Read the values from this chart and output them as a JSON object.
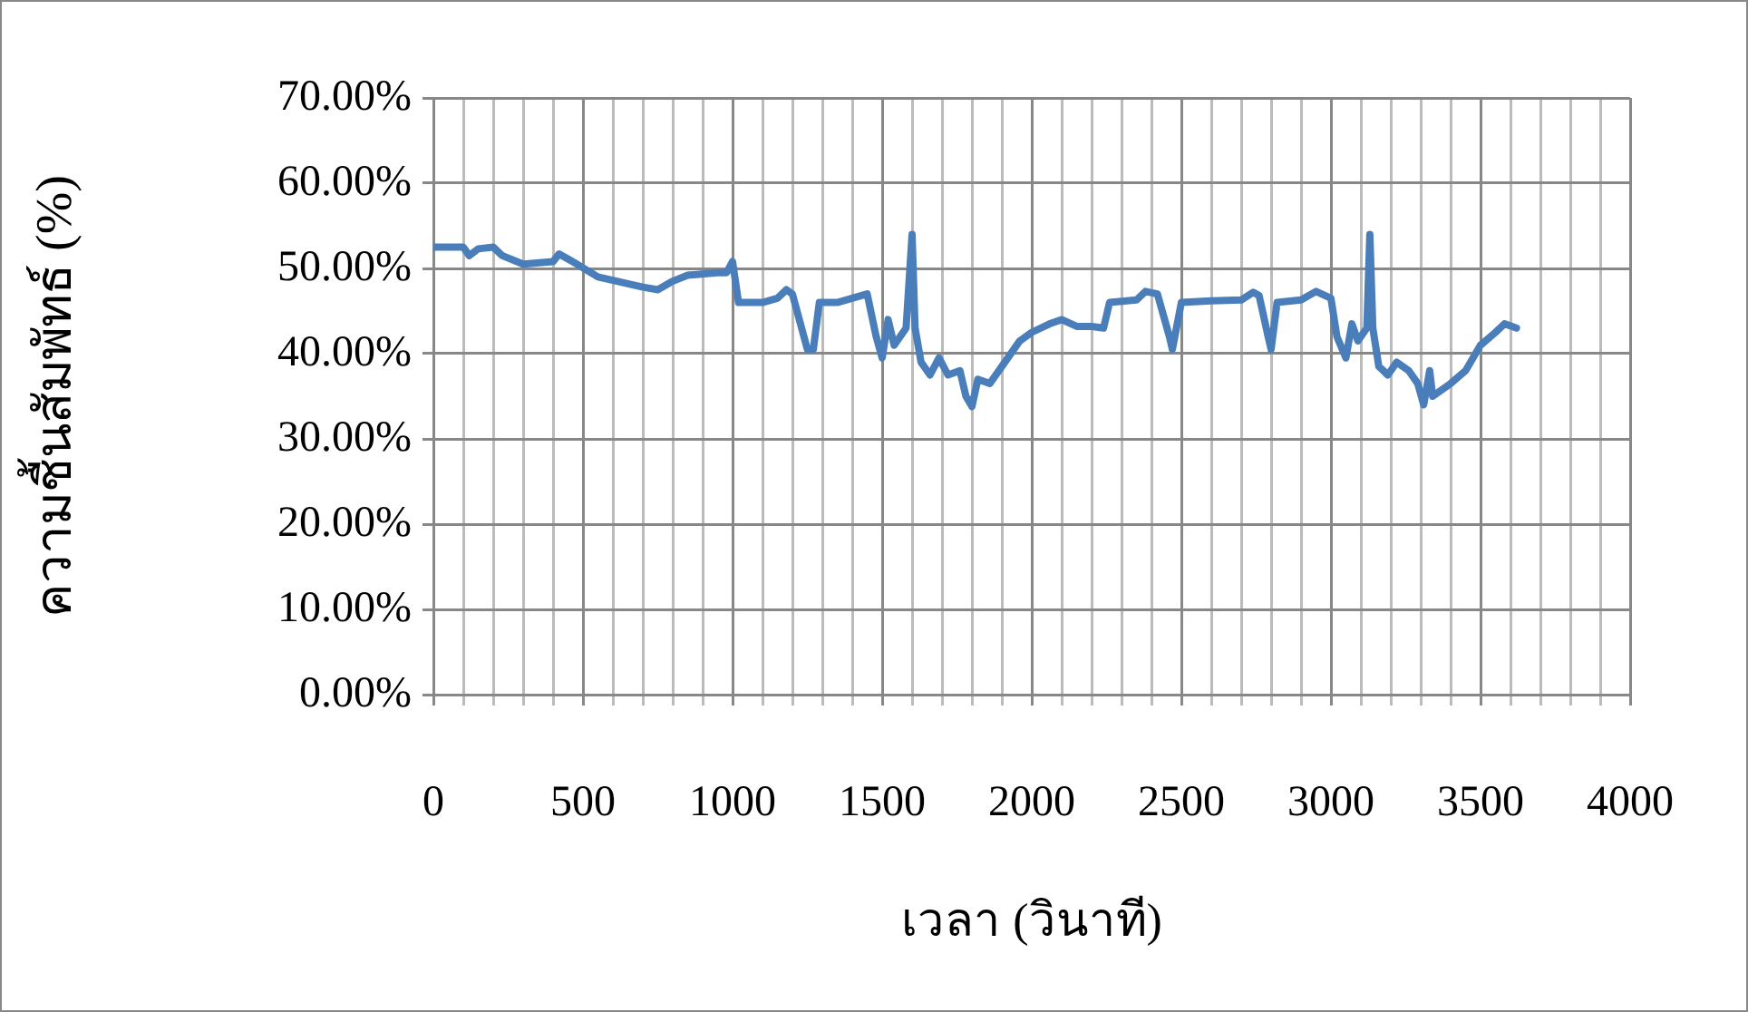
{
  "chart_data": {
    "type": "line",
    "xlabel": "เวลา (วินาที)",
    "ylabel": "ความชื้นสัมพัทธ์ (%)",
    "xlim": [
      0,
      4000
    ],
    "xticks": [
      0,
      {
        "value": 100,
        "label": null
      },
      {
        "value": 200,
        "label": null
      },
      {
        "value": 300,
        "label": null
      },
      {
        "value": 400,
        "label": null
      },
      500,
      {
        "value": 600,
        "label": null
      },
      {
        "value": 700,
        "label": null
      },
      {
        "value": 800,
        "label": null
      },
      {
        "value": 900,
        "label": null
      },
      1000,
      {
        "value": 1100,
        "label": null
      },
      {
        "value": 1200,
        "label": null
      },
      {
        "value": 1300,
        "label": null
      },
      {
        "value": 1400,
        "label": null
      },
      1500,
      {
        "value": 1600,
        "label": null
      },
      {
        "value": 1700,
        "label": null
      },
      {
        "value": 1800,
        "label": null
      },
      {
        "value": 1900,
        "label": null
      },
      2000,
      {
        "value": 2100,
        "label": null
      },
      {
        "value": 2200,
        "label": null
      },
      {
        "value": 2300,
        "label": null
      },
      {
        "value": 2400,
        "label": null
      },
      2500,
      {
        "value": 2600,
        "label": null
      },
      {
        "value": 2700,
        "label": null
      },
      {
        "value": 2800,
        "label": null
      },
      {
        "value": 2900,
        "label": null
      },
      3000,
      {
        "value": 3100,
        "label": null
      },
      {
        "value": 3200,
        "label": null
      },
      {
        "value": 3300,
        "label": null
      },
      {
        "value": 3400,
        "label": null
      },
      3500,
      {
        "value": 3600,
        "label": null
      },
      {
        "value": 3700,
        "label": null
      },
      {
        "value": 3800,
        "label": null
      },
      {
        "value": 3900,
        "label": null
      },
      4000
    ],
    "ylim": [
      0,
      0.7
    ],
    "yticks": [
      {
        "value": 0,
        "label": "0.00%"
      },
      {
        "value": 0.1,
        "label": "10.00%"
      },
      {
        "value": 0.2,
        "label": "20.00%"
      },
      {
        "value": 0.3,
        "label": "30.00%"
      },
      {
        "value": 0.4,
        "label": "40.00%"
      },
      {
        "value": 0.5,
        "label": "50.00%"
      },
      {
        "value": 0.6,
        "label": "60.00%"
      },
      {
        "value": 0.7,
        "label": "70.00%"
      }
    ],
    "grid": true,
    "legend": false,
    "marker": "none",
    "line_style": "solid",
    "series": [
      {
        "color": "#4a7ebb",
        "x": [
          0,
          100,
          120,
          150,
          200,
          230,
          300,
          400,
          420,
          480,
          550,
          700,
          750,
          800,
          850,
          950,
          980,
          1000,
          1020,
          1100,
          1150,
          1180,
          1200,
          1250,
          1270,
          1290,
          1350,
          1400,
          1450,
          1480,
          1500,
          1520,
          1540,
          1580,
          1600,
          1610,
          1630,
          1660,
          1690,
          1720,
          1760,
          1780,
          1800,
          1820,
          1860,
          1900,
          1960,
          2000,
          2060,
          2100,
          2150,
          2200,
          2240,
          2260,
          2350,
          2380,
          2420,
          2460,
          2470,
          2500,
          2600,
          2700,
          2740,
          2760,
          2790,
          2800,
          2820,
          2900,
          2950,
          3000,
          3020,
          3050,
          3070,
          3090,
          3120,
          3130,
          3140,
          3160,
          3190,
          3220,
          3260,
          3290,
          3310,
          3330,
          3340,
          3400,
          3450,
          3500,
          3550,
          3580,
          3620
        ],
        "values": [
          0.525,
          0.525,
          0.515,
          0.523,
          0.525,
          0.515,
          0.505,
          0.508,
          0.517,
          0.505,
          0.49,
          0.478,
          0.475,
          0.485,
          0.492,
          0.495,
          0.495,
          0.508,
          0.46,
          0.46,
          0.465,
          0.475,
          0.47,
          0.405,
          0.405,
          0.46,
          0.46,
          0.465,
          0.47,
          0.42,
          0.395,
          0.44,
          0.41,
          0.43,
          0.54,
          0.43,
          0.39,
          0.375,
          0.395,
          0.375,
          0.38,
          0.35,
          0.338,
          0.37,
          0.365,
          0.385,
          0.415,
          0.425,
          0.435,
          0.44,
          0.432,
          0.432,
          0.43,
          0.46,
          0.463,
          0.473,
          0.47,
          0.42,
          0.405,
          0.46,
          0.462,
          0.463,
          0.472,
          0.468,
          0.42,
          0.405,
          0.46,
          0.463,
          0.473,
          0.465,
          0.42,
          0.395,
          0.435,
          0.415,
          0.43,
          0.54,
          0.43,
          0.385,
          0.375,
          0.39,
          0.38,
          0.365,
          0.34,
          0.38,
          0.35,
          0.365,
          0.38,
          0.41,
          0.425,
          0.435,
          0.43
        ]
      }
    ]
  }
}
